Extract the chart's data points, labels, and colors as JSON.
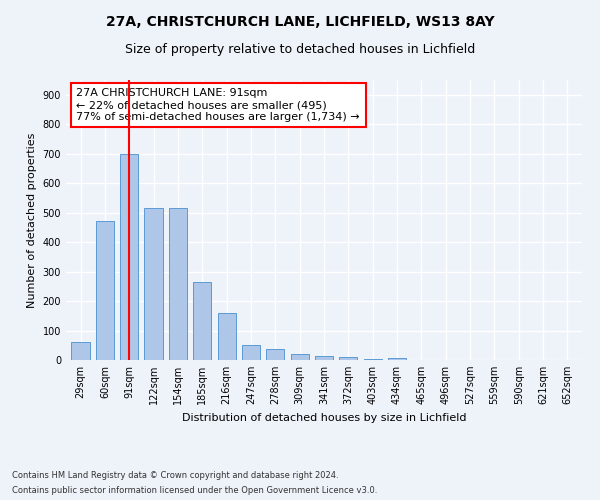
{
  "title1": "27A, CHRISTCHURCH LANE, LICHFIELD, WS13 8AY",
  "title2": "Size of property relative to detached houses in Lichfield",
  "xlabel": "Distribution of detached houses by size in Lichfield",
  "ylabel": "Number of detached properties",
  "categories": [
    "29sqm",
    "60sqm",
    "91sqm",
    "122sqm",
    "154sqm",
    "185sqm",
    "216sqm",
    "247sqm",
    "278sqm",
    "309sqm",
    "341sqm",
    "372sqm",
    "403sqm",
    "434sqm",
    "465sqm",
    "496sqm",
    "527sqm",
    "559sqm",
    "590sqm",
    "621sqm",
    "652sqm"
  ],
  "values": [
    60,
    470,
    700,
    515,
    515,
    265,
    160,
    50,
    38,
    20,
    15,
    10,
    5,
    8,
    0,
    0,
    0,
    0,
    0,
    0,
    0
  ],
  "bar_color": "#aec6e8",
  "bar_edge_color": "#5b9bd5",
  "vline_x": 2,
  "vline_color": "red",
  "annotation_text": "27A CHRISTCHURCH LANE: 91sqm\n← 22% of detached houses are smaller (495)\n77% of semi-detached houses are larger (1,734) →",
  "annotation_box_color": "white",
  "annotation_box_edge": "red",
  "ylim": [
    0,
    950
  ],
  "yticks": [
    0,
    100,
    200,
    300,
    400,
    500,
    600,
    700,
    800,
    900
  ],
  "footer1": "Contains HM Land Registry data © Crown copyright and database right 2024.",
  "footer2": "Contains public sector information licensed under the Open Government Licence v3.0.",
  "bg_color": "#eef2f9",
  "grid_color": "#ffffff",
  "title_fontsize": 10,
  "subtitle_fontsize": 9,
  "axis_label_fontsize": 8,
  "tick_fontsize": 7,
  "bar_width": 0.75
}
